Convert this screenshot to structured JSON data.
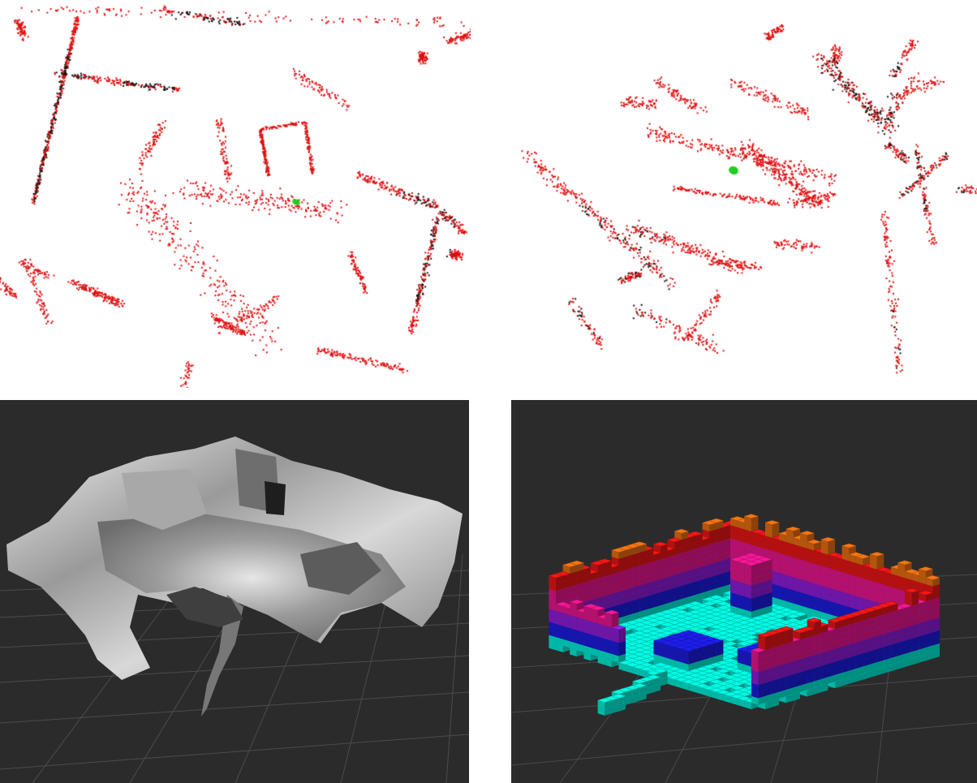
{
  "figure": {
    "layout": "2x2 grid",
    "panels": [
      {
        "id": "sparse-map-top-view",
        "kind": "point-cloud",
        "background": "#ffffff",
        "point_colors": [
          "#e01010",
          "#111111"
        ],
        "marker_color": "#22cc22"
      },
      {
        "id": "sparse-map-perspective-view",
        "kind": "point-cloud",
        "background": "#ffffff",
        "point_colors": [
          "#e01010",
          "#111111"
        ],
        "marker_color": "#22cc22"
      },
      {
        "id": "grayscale-mesh-reconstruction",
        "kind": "3d-mesh",
        "background": "#2b2b2b",
        "surface_color": "#cfcfcf",
        "grid": true
      },
      {
        "id": "voxel-map-reconstruction",
        "kind": "voxel-grid",
        "background": "#2b2b2b",
        "grid": true,
        "height_colormap": [
          "#00e5d0",
          "#1b1bd8",
          "#8a1bd0",
          "#e0158a",
          "#e01515",
          "#e06a10"
        ]
      }
    ]
  }
}
